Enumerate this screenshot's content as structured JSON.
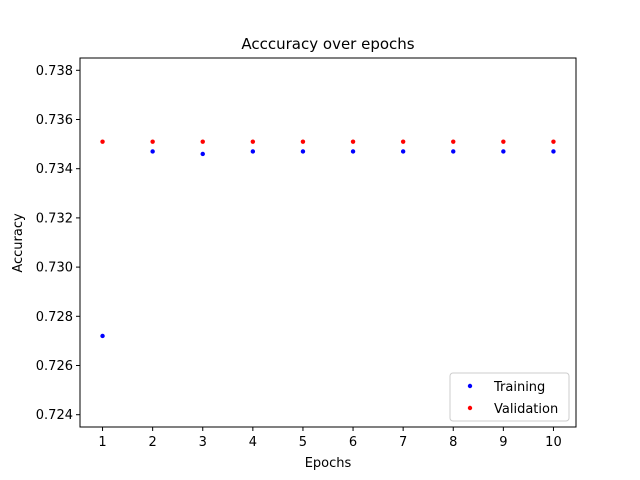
{
  "chart_data": {
    "type": "scatter",
    "title": "Acccuracy over epochs",
    "xlabel": "Epochs",
    "ylabel": "Accuracy",
    "x": [
      1,
      2,
      3,
      4,
      5,
      6,
      7,
      8,
      9,
      10
    ],
    "xticks": [
      "1",
      "2",
      "3",
      "4",
      "5",
      "6",
      "7",
      "8",
      "9",
      "10"
    ],
    "yticks": [
      "0.724",
      "0.726",
      "0.728",
      "0.730",
      "0.732",
      "0.734",
      "0.736",
      "0.738"
    ],
    "xlim": [
      0.55,
      10.45
    ],
    "ylim": [
      0.7235,
      0.7385
    ],
    "grid": false,
    "legend_position": "lower right",
    "series": [
      {
        "name": "Training",
        "color": "#0000ff",
        "values": [
          0.7272,
          0.7347,
          0.7346,
          0.7347,
          0.7347,
          0.7347,
          0.7347,
          0.7347,
          0.7347,
          0.7347
        ]
      },
      {
        "name": "Validation",
        "color": "#ff0000",
        "values": [
          0.7351,
          0.7351,
          0.7351,
          0.7351,
          0.7351,
          0.7351,
          0.7351,
          0.7351,
          0.7351,
          0.7351
        ]
      }
    ]
  }
}
